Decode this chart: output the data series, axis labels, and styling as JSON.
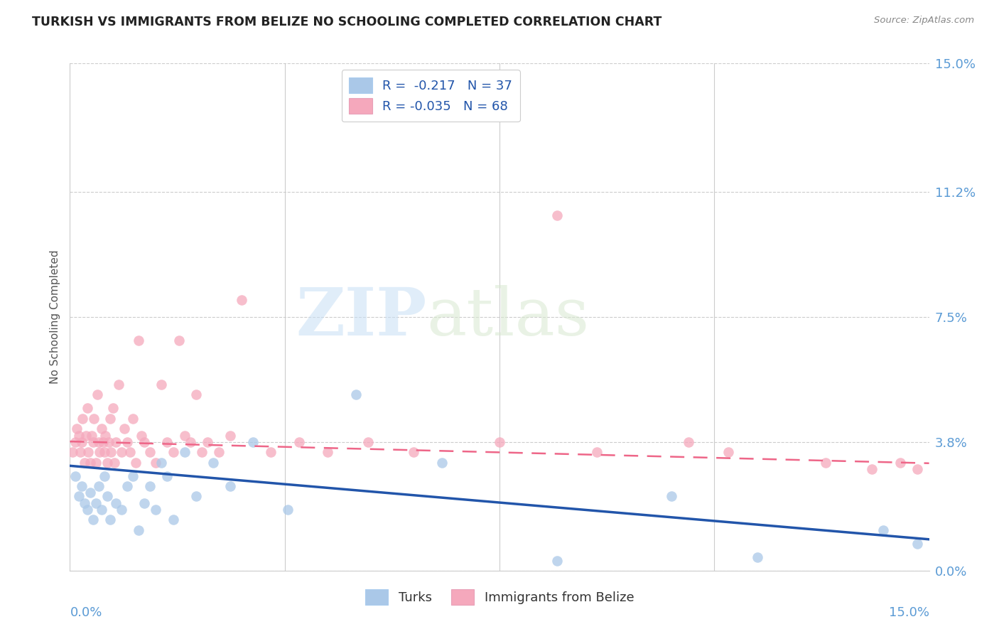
{
  "title": "TURKISH VS IMMIGRANTS FROM BELIZE NO SCHOOLING COMPLETED CORRELATION CHART",
  "source": "Source: ZipAtlas.com",
  "ylabel": "No Schooling Completed",
  "ytick_values": [
    0.0,
    3.8,
    7.5,
    11.2,
    15.0
  ],
  "xlim": [
    0.0,
    15.0
  ],
  "ylim": [
    0.0,
    15.0
  ],
  "turks_R": -0.217,
  "turks_N": 37,
  "belize_R": -0.035,
  "belize_N": 68,
  "turks_color": "#aac8e8",
  "turks_edge_color": "#7aaad0",
  "belize_color": "#f5a8bc",
  "belize_edge_color": "#e87898",
  "turks_line_color": "#2255aa",
  "belize_line_color": "#ee6688",
  "legend_label_turks": "Turks",
  "legend_label_belize": "Immigrants from Belize",
  "watermark_zip": "ZIP",
  "watermark_atlas": "atlas",
  "turks_x": [
    0.1,
    0.15,
    0.2,
    0.25,
    0.3,
    0.35,
    0.4,
    0.45,
    0.5,
    0.55,
    0.6,
    0.65,
    0.7,
    0.8,
    0.9,
    1.0,
    1.1,
    1.2,
    1.3,
    1.4,
    1.5,
    1.6,
    1.7,
    1.8,
    2.0,
    2.2,
    2.5,
    2.8,
    3.2,
    3.8,
    5.0,
    6.5,
    8.5,
    10.5,
    12.0,
    14.2,
    14.8
  ],
  "turks_y": [
    2.8,
    2.2,
    2.5,
    2.0,
    1.8,
    2.3,
    1.5,
    2.0,
    2.5,
    1.8,
    2.8,
    2.2,
    1.5,
    2.0,
    1.8,
    2.5,
    2.8,
    1.2,
    2.0,
    2.5,
    1.8,
    3.2,
    2.8,
    1.5,
    3.5,
    2.2,
    3.2,
    2.5,
    3.8,
    1.8,
    5.2,
    3.2,
    0.3,
    2.2,
    0.4,
    1.2,
    0.8
  ],
  "belize_x": [
    0.05,
    0.1,
    0.12,
    0.15,
    0.18,
    0.2,
    0.22,
    0.25,
    0.28,
    0.3,
    0.32,
    0.35,
    0.38,
    0.4,
    0.42,
    0.45,
    0.48,
    0.5,
    0.52,
    0.55,
    0.58,
    0.6,
    0.62,
    0.65,
    0.68,
    0.7,
    0.72,
    0.75,
    0.78,
    0.8,
    0.85,
    0.9,
    0.95,
    1.0,
    1.05,
    1.1,
    1.15,
    1.2,
    1.25,
    1.3,
    1.4,
    1.5,
    1.6,
    1.7,
    1.8,
    1.9,
    2.0,
    2.1,
    2.2,
    2.3,
    2.4,
    2.6,
    2.8,
    3.0,
    3.5,
    4.0,
    4.5,
    5.2,
    6.0,
    7.5,
    8.5,
    9.2,
    10.8,
    11.5,
    13.2,
    14.0,
    14.5,
    14.8
  ],
  "belize_y": [
    3.5,
    3.8,
    4.2,
    4.0,
    3.5,
    3.8,
    4.5,
    3.2,
    4.0,
    4.8,
    3.5,
    3.2,
    4.0,
    3.8,
    4.5,
    3.2,
    5.2,
    3.8,
    3.5,
    4.2,
    3.8,
    3.5,
    4.0,
    3.2,
    3.8,
    4.5,
    3.5,
    4.8,
    3.2,
    3.8,
    5.5,
    3.5,
    4.2,
    3.8,
    3.5,
    4.5,
    3.2,
    6.8,
    4.0,
    3.8,
    3.5,
    3.2,
    5.5,
    3.8,
    3.5,
    6.8,
    4.0,
    3.8,
    5.2,
    3.5,
    3.8,
    3.5,
    4.0,
    8.0,
    3.5,
    3.8,
    3.5,
    3.8,
    3.5,
    3.8,
    10.5,
    3.5,
    3.8,
    3.5,
    3.2,
    3.0,
    3.2,
    3.0
  ]
}
